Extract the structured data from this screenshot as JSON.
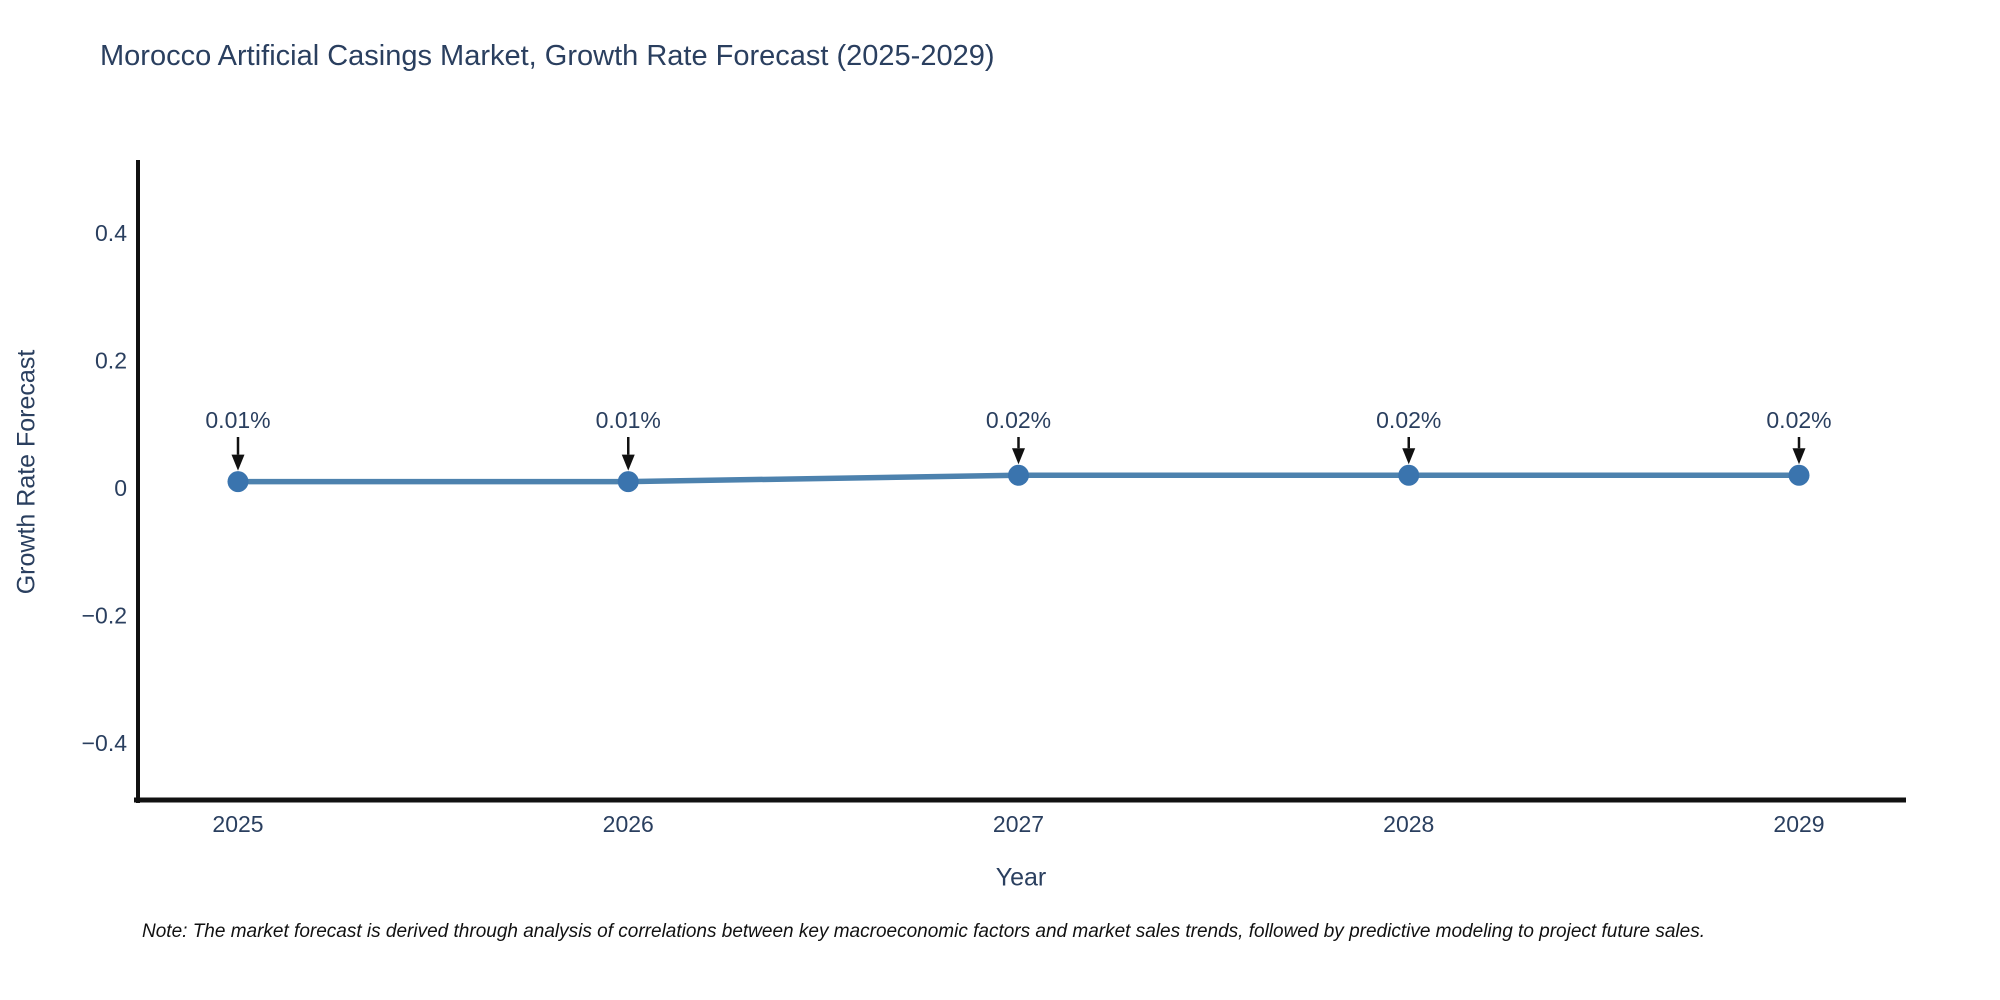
{
  "title": "Morocco Artificial Casings Market, Growth Rate Forecast (2025-2029)",
  "note": "Note: The market forecast is derived through analysis of correlations between key macroeconomic factors and market sales trends, followed by predictive modeling to project future sales.",
  "colors": {
    "line": "#4d82ae",
    "marker": "#3a74ae",
    "axis": "#111111",
    "text": "#2a3f5f",
    "annotation_arrow": "#111111",
    "background": "#ffffff"
  },
  "chart_data": {
    "type": "line",
    "title": "Morocco Artificial Casings Market, Growth Rate Forecast (2025-2029)",
    "xlabel": "Year",
    "ylabel": "Growth Rate Forecast",
    "x": [
      2025,
      2026,
      2027,
      2028,
      2029
    ],
    "y": [
      0.01,
      0.01,
      0.02,
      0.02,
      0.02
    ],
    "annotations": [
      "0.01%",
      "0.01%",
      "0.02%",
      "0.02%",
      "0.02%"
    ],
    "xtick_labels": [
      "2025",
      "2026",
      "2027",
      "2028",
      "2029"
    ],
    "yticks": [
      0.4,
      0.2,
      0,
      -0.2,
      -0.4
    ],
    "ytick_labels": [
      "0.4",
      "0.2",
      "0",
      "−0.2",
      "−0.4"
    ],
    "xlim": [
      2024.74,
      2029.27
    ],
    "ylim": [
      -0.49,
      0.52
    ],
    "grid": false,
    "legend": false,
    "marker_style": "circle",
    "annotation_style": "text-above-with-down-arrow"
  }
}
